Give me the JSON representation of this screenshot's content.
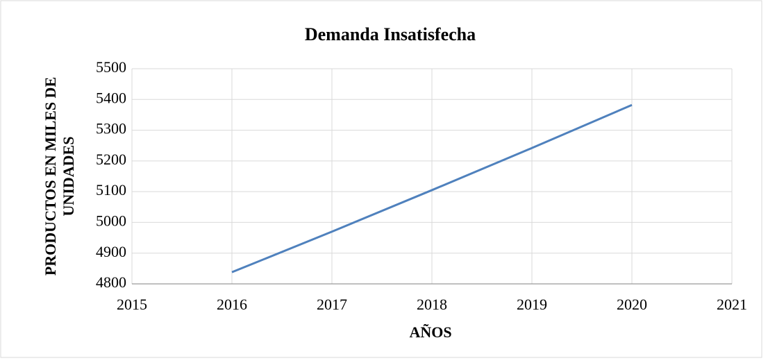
{
  "chart_data": {
    "type": "line",
    "title": "Demanda Insatisfecha",
    "x_label": "AÑOS",
    "y_label": "PRODUCTOS EN MILES DE UNIDADES",
    "x": [
      2016,
      2017,
      2018,
      2019,
      2020
    ],
    "series": [
      {
        "name": "Demanda Insatisfecha",
        "color": "#4f81bd",
        "values": [
          4838,
          4970,
          5105,
          5242,
          5382
        ]
      }
    ],
    "xlim": [
      2015,
      2021
    ],
    "xticks": [
      2015,
      2016,
      2017,
      2018,
      2019,
      2020,
      2021
    ],
    "ylim": [
      4800,
      5500
    ],
    "yticks": [
      4800,
      4900,
      5000,
      5100,
      5200,
      5300,
      5400,
      5500
    ],
    "grid": true,
    "legend": false
  }
}
